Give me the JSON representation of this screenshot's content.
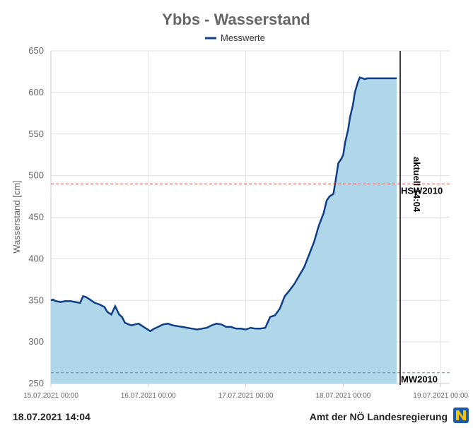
{
  "chart_data": {
    "type": "area",
    "title": "Ybbs - Wasserstand",
    "ylabel": "Wasserstand [cm]",
    "xlabel": "",
    "ylim": [
      250,
      650
    ],
    "yticks": [
      250,
      300,
      350,
      400,
      450,
      500,
      550,
      600,
      650
    ],
    "xticks": [
      "15.07.2021 00:00",
      "16.07.2021 00:00",
      "17.07.2021 00:00",
      "18.07.2021 00:00",
      "19.07.2021 00:00"
    ],
    "xlim_days": [
      0,
      4.08
    ],
    "grid": true,
    "legend_position": "top-center",
    "colors": {
      "line": "#0d3e86",
      "fill": "#b0d6ea",
      "hw": "#d9534f",
      "mw": "#5b7fd6",
      "current": "#000000"
    },
    "series": [
      {
        "name": "Messwerte",
        "x": [
          0.0,
          0.02,
          0.05,
          0.1,
          0.15,
          0.2,
          0.25,
          0.3,
          0.33,
          0.36,
          0.4,
          0.45,
          0.5,
          0.55,
          0.58,
          0.62,
          0.66,
          0.7,
          0.73,
          0.76,
          0.8,
          0.83,
          0.86,
          0.9,
          0.94,
          0.98,
          1.02,
          1.06,
          1.1,
          1.15,
          1.2,
          1.25,
          1.3,
          1.35,
          1.4,
          1.45,
          1.5,
          1.55,
          1.6,
          1.65,
          1.7,
          1.75,
          1.8,
          1.85,
          1.9,
          1.95,
          2.0,
          2.05,
          2.1,
          2.15,
          2.2,
          2.25,
          2.3,
          2.35,
          2.4,
          2.45,
          2.5,
          2.55,
          2.6,
          2.65,
          2.7,
          2.75,
          2.8,
          2.83,
          2.86,
          2.9,
          2.93,
          2.95,
          2.98,
          3.0,
          3.02,
          3.05,
          3.07,
          3.1,
          3.12,
          3.15,
          3.17,
          3.2,
          3.22,
          3.25,
          3.27,
          3.3,
          3.32,
          3.35,
          3.37,
          3.4,
          3.42,
          3.45,
          3.47,
          3.5,
          3.52,
          3.55
        ],
        "values": [
          350,
          351,
          349,
          348,
          349,
          349,
          348,
          347,
          355,
          354,
          351,
          347,
          345,
          342,
          336,
          333,
          343,
          333,
          330,
          323,
          321,
          320,
          321,
          322,
          319,
          316,
          313,
          316,
          318,
          321,
          322,
          320,
          319,
          318,
          317,
          316,
          315,
          316,
          317,
          320,
          322,
          321,
          318,
          318,
          316,
          316,
          315,
          317,
          316,
          316,
          317,
          330,
          332,
          340,
          355,
          362,
          370,
          380,
          390,
          405,
          420,
          440,
          455,
          470,
          475,
          478,
          500,
          515,
          520,
          525,
          540,
          555,
          570,
          585,
          600,
          612,
          618,
          617,
          616,
          617,
          617,
          617,
          617,
          617,
          617,
          617,
          617,
          617,
          617,
          617,
          617,
          617
        ]
      }
    ],
    "reference_lines": [
      {
        "label": "HSW2010",
        "value": 490
      },
      {
        "label": "MW2010",
        "value": 263
      }
    ],
    "current_marker": {
      "label": "aktuell 14:04",
      "x_day": 3.585
    }
  },
  "footer": {
    "timestamp": "18.07.2021 14:04",
    "source": "Amt der NÖ Landesregierung"
  }
}
